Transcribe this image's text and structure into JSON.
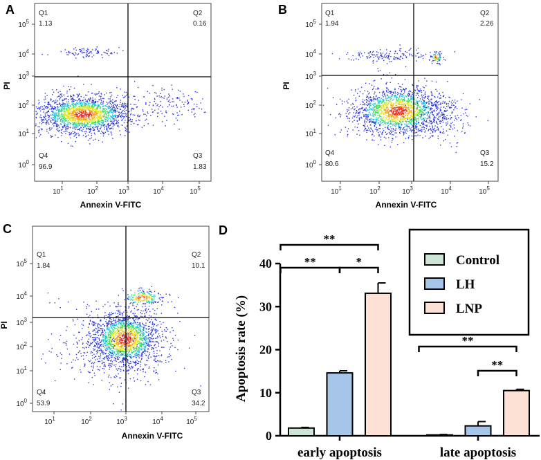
{
  "panels": {
    "A": {
      "label": "A",
      "Q1": "Q1",
      "Q1_val": "1.13",
      "Q2": "Q2",
      "Q2_val": "0.16",
      "Q3": "Q3",
      "Q3_val": "1.83",
      "Q4": "Q4",
      "Q4_val": "96.9"
    },
    "B": {
      "label": "B",
      "Q1": "Q1",
      "Q1_val": "1.94",
      "Q2": "Q2",
      "Q2_val": "2.26",
      "Q3": "Q3",
      "Q3_val": "15.2",
      "Q4": "Q4",
      "Q4_val": "80.6"
    },
    "C": {
      "label": "C",
      "Q1": "Q1",
      "Q1_val": "1.84",
      "Q2": "Q2",
      "Q2_val": "10.1",
      "Q3": "Q3",
      "Q3_val": "34.2",
      "Q4": "Q4",
      "Q4_val": "53.9"
    },
    "D": {
      "label": "D"
    }
  },
  "flow_axes": {
    "xlabel": "Annexin V-FITC",
    "ylabel": "PI",
    "base": "10",
    "exponents": [
      "0",
      "1",
      "2",
      "3",
      "4",
      "5"
    ]
  },
  "chart_data": {
    "type": "bar",
    "title": "",
    "ylabel": "Apoptosis rate (%)",
    "xlabel": "",
    "ylim": [
      0,
      40
    ],
    "yticks": [
      "0",
      "10",
      "20",
      "30",
      "40"
    ],
    "categories": [
      "early apoptosis",
      "late apoptosis"
    ],
    "series": [
      {
        "name": "Control",
        "color": "#cce5d6",
        "values": [
          1.8,
          0.2
        ],
        "errors": [
          0.15,
          0.1
        ]
      },
      {
        "name": "LH",
        "color": "#a7c5e8",
        "values": [
          14.6,
          2.3
        ],
        "errors": [
          0.5,
          1.0
        ]
      },
      {
        "name": "LNP",
        "color": "#fde1d4",
        "values": [
          33.1,
          10.5
        ],
        "errors": [
          2.4,
          0.3
        ]
      }
    ],
    "significance": [
      {
        "category": "early apoptosis",
        "from": "Control",
        "to": "LNP",
        "label": "**"
      },
      {
        "category": "early apoptosis",
        "from": "Control",
        "to": "LH",
        "label": "**"
      },
      {
        "category": "early apoptosis",
        "from": "LH",
        "to": "LNP",
        "label": "*"
      },
      {
        "category": "late apoptosis",
        "from": "Control",
        "to": "LNP",
        "label": "**"
      },
      {
        "category": "late apoptosis",
        "from": "LH",
        "to": "LNP",
        "label": "**"
      }
    ],
    "legend_position": "top-right"
  }
}
